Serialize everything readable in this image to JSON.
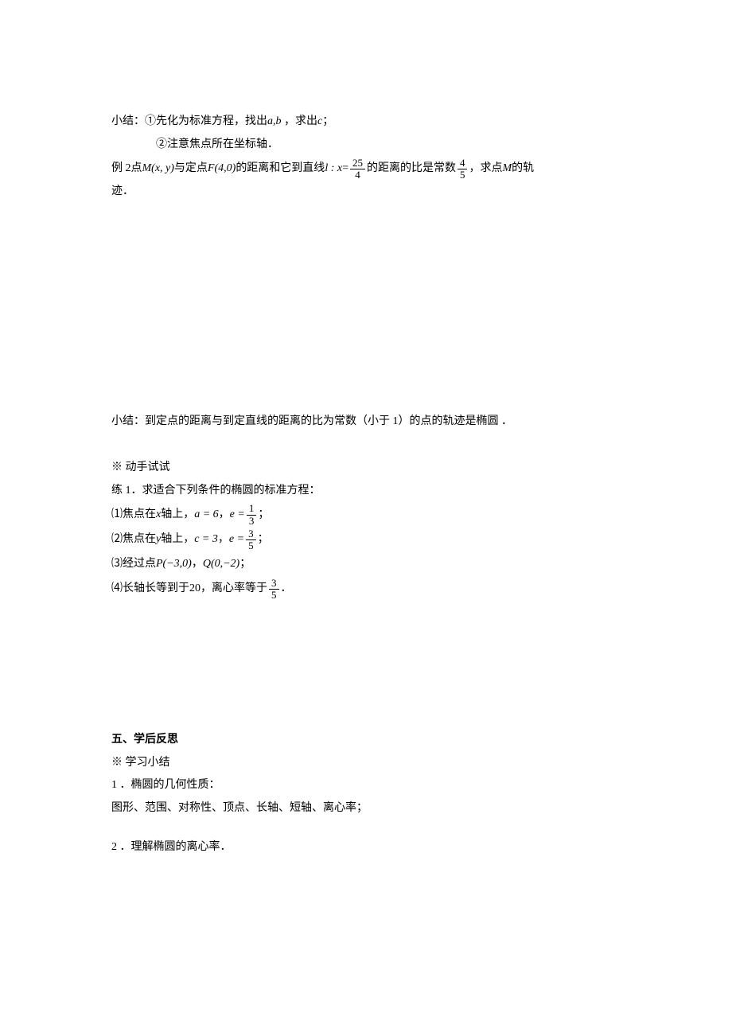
{
  "summary1": {
    "prefix": "小结：",
    "item1_marker": "①",
    "item1_text": "先化为标准方程，找出",
    "item1_vars": "a,b",
    "item1_mid": " ，求出",
    "item1_var2": "c",
    "item1_end": "；",
    "item2_marker": "②",
    "item2_text": "注意焦点所在坐标轴．"
  },
  "example2": {
    "prefix": "例 2点",
    "point": "M(x, y)",
    "text1": "与定点",
    "fixed_point": "F(4,0)",
    "text2": "的距离和它到直线",
    "line_label": "l : x",
    "equals": "=",
    "frac1_num": "25",
    "frac1_den": "4",
    "text3": "的距离的比是常数",
    "frac2_num": "4",
    "frac2_den": "5",
    "text4": "，求点",
    "point_m": "M",
    "text5": "的轨",
    "text6": "迹．"
  },
  "summary2": {
    "text": "小结：到定点的距离与到定直线的距离的比为常数（小于 1）的点的轨迹是椭圆 ．"
  },
  "practice": {
    "marker": "※ 动手试试",
    "title": "练 1．求适合下列条件的椭圆的标准方程：",
    "item1": {
      "num": "⑴",
      "text1": "焦点在",
      "axis": "x",
      "text2": "轴上，",
      "a_eq": "a = 6",
      "comma": "，",
      "e_eq": "e =",
      "frac_num": "1",
      "frac_den": "3",
      "end": "；"
    },
    "item2": {
      "num": "⑵",
      "text1": "焦点在",
      "axis": "y",
      "text2": "轴上，",
      "c_eq": "c = 3",
      "comma": "，",
      "e_eq": "e =",
      "frac_num": "3",
      "frac_den": "5",
      "end": "；"
    },
    "item3": {
      "num": "⑶",
      "text1": "经过点",
      "p1": "P(−3,0)",
      "comma": "，",
      "p2": "Q(0,−2)",
      "end": "；"
    },
    "item4": {
      "num": "⑷",
      "text1": "长轴长等到于",
      "val": "20",
      "text2": "，离心率等于",
      "frac_num": "3",
      "frac_den": "5",
      "end": "．"
    }
  },
  "reflection": {
    "title": "五、学后反思",
    "marker": "※ 学习小结",
    "item1_num": "1 ．",
    "item1_title": "椭圆的几何性质：",
    "item1_text": "图形、范围、对称性、顶点、长轴、短轴、离心率；",
    "item2_num": "2 ．",
    "item2_text": "理解椭圆的离心率．"
  }
}
